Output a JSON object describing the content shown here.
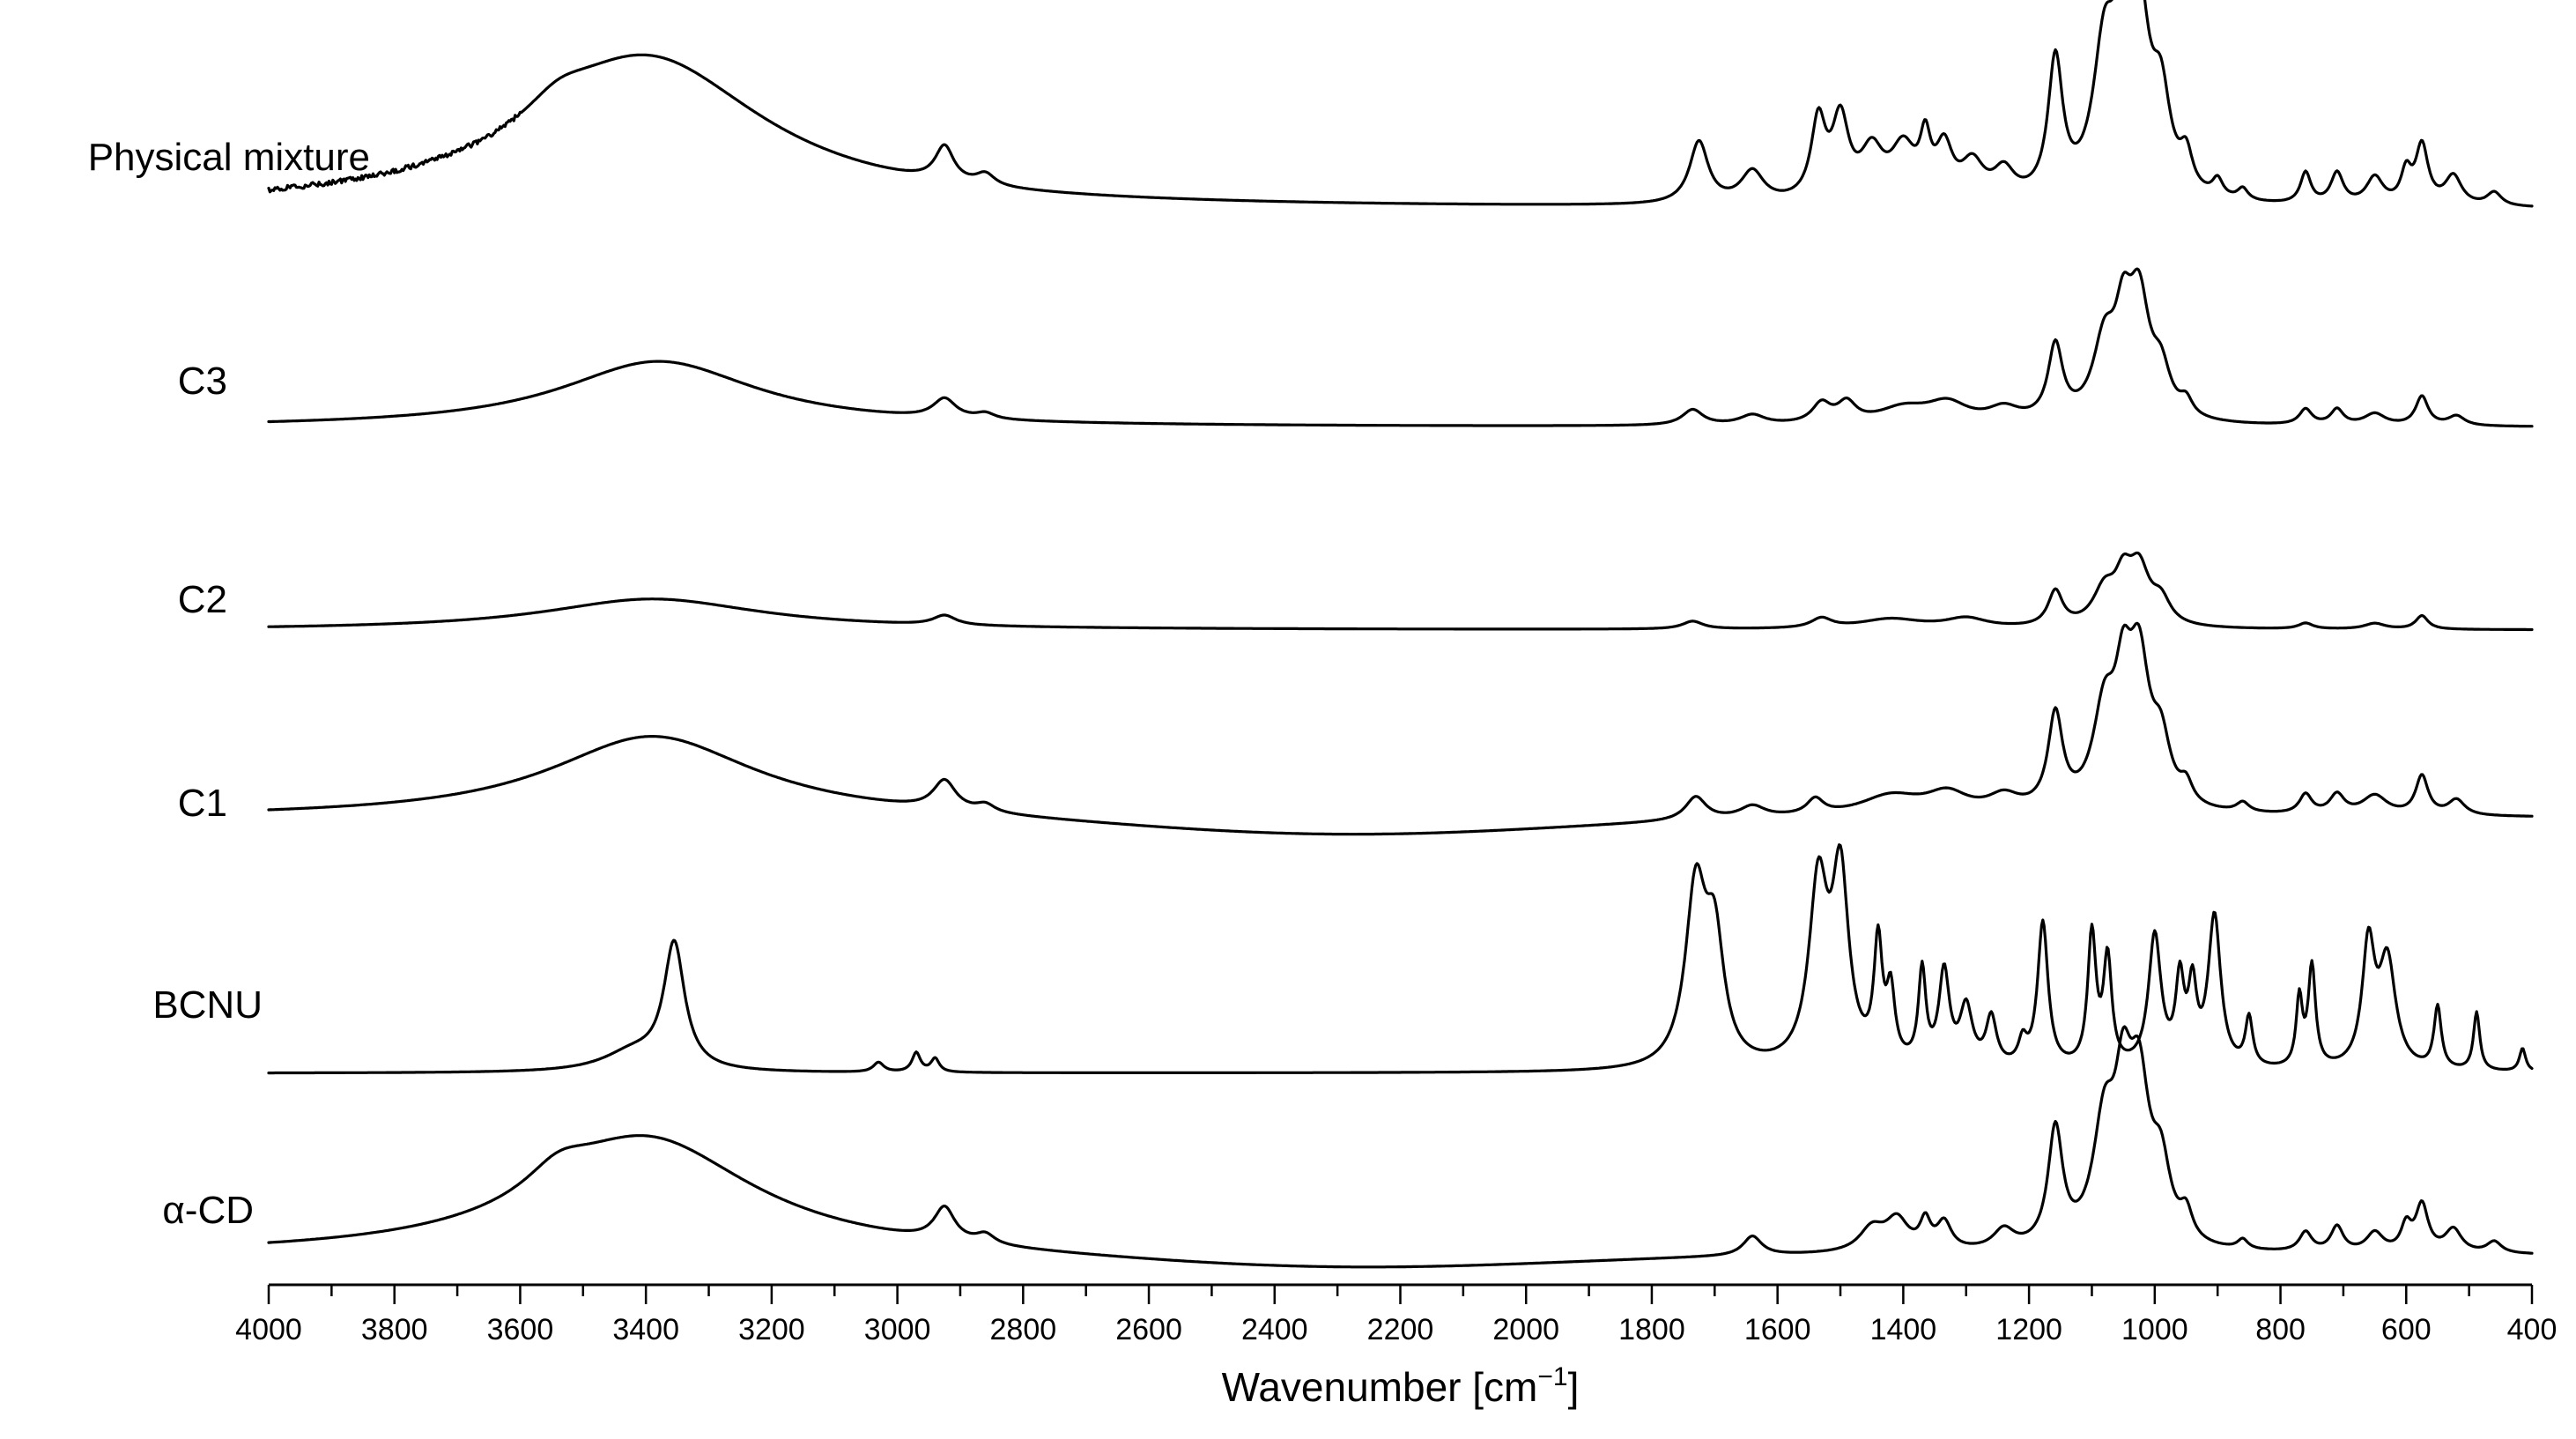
{
  "chart_data": {
    "type": "line",
    "xlabel_text": "Wavenumber [cm",
    "xlabel_sup": "−1",
    "xlabel_close": "]",
    "xlim": [
      4000,
      400
    ],
    "x_reversed": true,
    "xticks": [
      "4000",
      "3800",
      "3600",
      "3400",
      "3200",
      "3000",
      "2800",
      "2600",
      "2400",
      "2200",
      "2000",
      "1800",
      "1600",
      "1400",
      "1200",
      "1000",
      "800",
      "600",
      "400"
    ],
    "minor_tick_step": 100,
    "y_axis_visible": false,
    "grid": false,
    "legend": "none",
    "line_color": "#000000",
    "series": [
      {
        "name": "Physical mixture",
        "baseline": 0.02,
        "noisy_region": [
          4000,
          3600
        ],
        "peaks": [
          [
            3400,
            0.78,
            230
          ],
          [
            3540,
            0.1,
            60
          ],
          [
            2925,
            0.18,
            18
          ],
          [
            2860,
            0.06,
            18
          ],
          [
            1725,
            0.32,
            18
          ],
          [
            1640,
            0.16,
            22
          ],
          [
            1535,
            0.4,
            14
          ],
          [
            1500,
            0.4,
            16
          ],
          [
            1450,
            0.24,
            22
          ],
          [
            1400,
            0.26,
            24
          ],
          [
            1365,
            0.26,
            10
          ],
          [
            1335,
            0.25,
            16
          ],
          [
            1290,
            0.18,
            22
          ],
          [
            1240,
            0.14,
            20
          ],
          [
            1158,
            0.7,
            14
          ],
          [
            1080,
            0.72,
            22
          ],
          [
            1050,
            0.72,
            16
          ],
          [
            1025,
            0.85,
            20
          ],
          [
            990,
            0.45,
            18
          ],
          [
            950,
            0.18,
            12
          ],
          [
            900,
            0.09,
            10
          ],
          [
            860,
            0.06,
            10
          ],
          [
            760,
            0.16,
            10
          ],
          [
            710,
            0.16,
            12
          ],
          [
            650,
            0.14,
            16
          ],
          [
            600,
            0.16,
            10
          ],
          [
            575,
            0.3,
            12
          ],
          [
            525,
            0.15,
            16
          ],
          [
            460,
            0.07,
            14
          ]
        ]
      },
      {
        "name": "C3",
        "baseline": 0.0,
        "peaks": [
          [
            3380,
            0.34,
            190
          ],
          [
            2925,
            0.1,
            22
          ],
          [
            2860,
            0.03,
            18
          ],
          [
            1735,
            0.08,
            20
          ],
          [
            1640,
            0.05,
            24
          ],
          [
            1530,
            0.1,
            18
          ],
          [
            1490,
            0.1,
            18
          ],
          [
            1400,
            0.08,
            50
          ],
          [
            1330,
            0.1,
            40
          ],
          [
            1240,
            0.07,
            30
          ],
          [
            1158,
            0.38,
            14
          ],
          [
            1080,
            0.38,
            22
          ],
          [
            1050,
            0.4,
            16
          ],
          [
            1025,
            0.58,
            20
          ],
          [
            990,
            0.22,
            18
          ],
          [
            950,
            0.08,
            12
          ],
          [
            760,
            0.08,
            12
          ],
          [
            710,
            0.08,
            12
          ],
          [
            650,
            0.06,
            20
          ],
          [
            575,
            0.15,
            12
          ],
          [
            520,
            0.05,
            16
          ]
        ]
      },
      {
        "name": "C2",
        "baseline": 0.0,
        "peaks": [
          [
            3390,
            0.16,
            210
          ],
          [
            2925,
            0.05,
            22
          ],
          [
            1735,
            0.04,
            20
          ],
          [
            1530,
            0.05,
            20
          ],
          [
            1420,
            0.05,
            60
          ],
          [
            1300,
            0.05,
            40
          ],
          [
            1158,
            0.18,
            14
          ],
          [
            1080,
            0.18,
            22
          ],
          [
            1050,
            0.2,
            16
          ],
          [
            1025,
            0.28,
            20
          ],
          [
            990,
            0.12,
            18
          ],
          [
            760,
            0.03,
            14
          ],
          [
            575,
            0.07,
            12
          ],
          [
            650,
            0.03,
            20
          ]
        ]
      },
      {
        "name": "C1",
        "baseline": 0.0,
        "baseline_dip": [
          2300,
          -0.1,
          500
        ],
        "peaks": [
          [
            3390,
            0.42,
            200
          ],
          [
            2925,
            0.15,
            22
          ],
          [
            2860,
            0.04,
            18
          ],
          [
            1730,
            0.12,
            20
          ],
          [
            1640,
            0.06,
            24
          ],
          [
            1540,
            0.08,
            16
          ],
          [
            1420,
            0.1,
            60
          ],
          [
            1330,
            0.1,
            40
          ],
          [
            1240,
            0.08,
            30
          ],
          [
            1158,
            0.48,
            14
          ],
          [
            1080,
            0.48,
            22
          ],
          [
            1050,
            0.5,
            16
          ],
          [
            1025,
            0.7,
            20
          ],
          [
            990,
            0.3,
            18
          ],
          [
            950,
            0.1,
            12
          ],
          [
            860,
            0.05,
            12
          ],
          [
            760,
            0.1,
            12
          ],
          [
            710,
            0.1,
            14
          ],
          [
            650,
            0.1,
            24
          ],
          [
            575,
            0.2,
            12
          ],
          [
            520,
            0.08,
            16
          ]
        ]
      },
      {
        "name": "BCNU",
        "baseline": 0.0,
        "peaks": [
          [
            3355,
            0.64,
            20
          ],
          [
            3420,
            0.1,
            60
          ],
          [
            3030,
            0.05,
            10
          ],
          [
            2970,
            0.1,
            8
          ],
          [
            2940,
            0.07,
            8
          ],
          [
            1730,
            0.9,
            20
          ],
          [
            1700,
            0.6,
            18
          ],
          [
            1535,
            0.92,
            18
          ],
          [
            1500,
            0.95,
            16
          ],
          [
            1440,
            0.6,
            8
          ],
          [
            1420,
            0.35,
            8
          ],
          [
            1370,
            0.48,
            7
          ],
          [
            1335,
            0.48,
            10
          ],
          [
            1300,
            0.3,
            12
          ],
          [
            1260,
            0.25,
            10
          ],
          [
            1210,
            0.12,
            8
          ],
          [
            1178,
            0.75,
            10
          ],
          [
            1100,
            0.68,
            8
          ],
          [
            1075,
            0.55,
            8
          ],
          [
            1000,
            0.68,
            12
          ],
          [
            960,
            0.42,
            8
          ],
          [
            940,
            0.38,
            8
          ],
          [
            905,
            0.78,
            12
          ],
          [
            850,
            0.25,
            7
          ],
          [
            770,
            0.35,
            6
          ],
          [
            750,
            0.52,
            7
          ],
          [
            660,
            0.62,
            12
          ],
          [
            630,
            0.55,
            16
          ],
          [
            550,
            0.32,
            7
          ],
          [
            488,
            0.3,
            6
          ],
          [
            415,
            0.12,
            6
          ]
        ]
      },
      {
        "name": "α-CD",
        "baseline": 0.0,
        "baseline_dip": [
          2300,
          -0.08,
          500
        ],
        "peaks": [
          [
            3400,
            0.6,
            210
          ],
          [
            3540,
            0.12,
            60
          ],
          [
            2925,
            0.17,
            20
          ],
          [
            2860,
            0.05,
            18
          ],
          [
            1640,
            0.1,
            18
          ],
          [
            1450,
            0.12,
            24
          ],
          [
            1410,
            0.16,
            22
          ],
          [
            1365,
            0.14,
            10
          ],
          [
            1335,
            0.14,
            14
          ],
          [
            1240,
            0.1,
            20
          ],
          [
            1158,
            0.6,
            14
          ],
          [
            1080,
            0.6,
            22
          ],
          [
            1050,
            0.62,
            16
          ],
          [
            1025,
            0.76,
            20
          ],
          [
            990,
            0.36,
            18
          ],
          [
            950,
            0.14,
            12
          ],
          [
            860,
            0.05,
            10
          ],
          [
            760,
            0.1,
            12
          ],
          [
            710,
            0.13,
            12
          ],
          [
            650,
            0.1,
            16
          ],
          [
            600,
            0.13,
            10
          ],
          [
            575,
            0.24,
            12
          ],
          [
            525,
            0.12,
            16
          ],
          [
            460,
            0.06,
            14
          ]
        ]
      }
    ]
  }
}
